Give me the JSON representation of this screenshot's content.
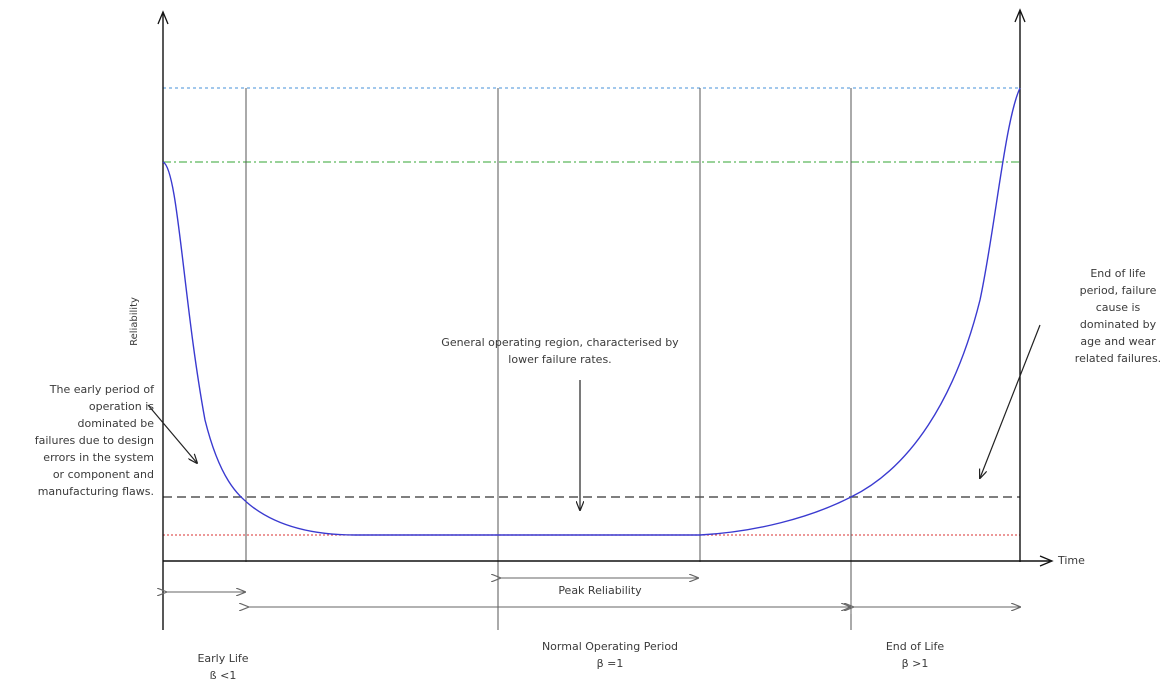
{
  "axes": {
    "x_label": "Time",
    "y_label": "Reliability"
  },
  "annotations": {
    "early_period": "The early period of\noperation is\ndominated be\nfailures due to design\nerrors in the system\nor component and\nmanufacturing flaws.",
    "general_region": "General operating region, characterised by\nlower failure rates.",
    "end_of_life_period": "End of life\nperiod, failure\ncause is\ndominated by\nage and wear\nrelated failures."
  },
  "periods": {
    "peak_reliability": "Peak Reliability",
    "early_life": "Early Life\nß <1",
    "normal_operating": "Normal Operating Period\nβ =1",
    "end_of_life": "End of Life\nβ >1"
  },
  "colors": {
    "curve": "#3a3ad0",
    "line_blue_dotted": "#6aa8e0",
    "line_green_dashdot": "#5cb85c",
    "line_gray_dashed": "#555555",
    "line_red_dotted": "#e05a5a",
    "axis": "#111111",
    "region_divider": "#555555"
  }
}
